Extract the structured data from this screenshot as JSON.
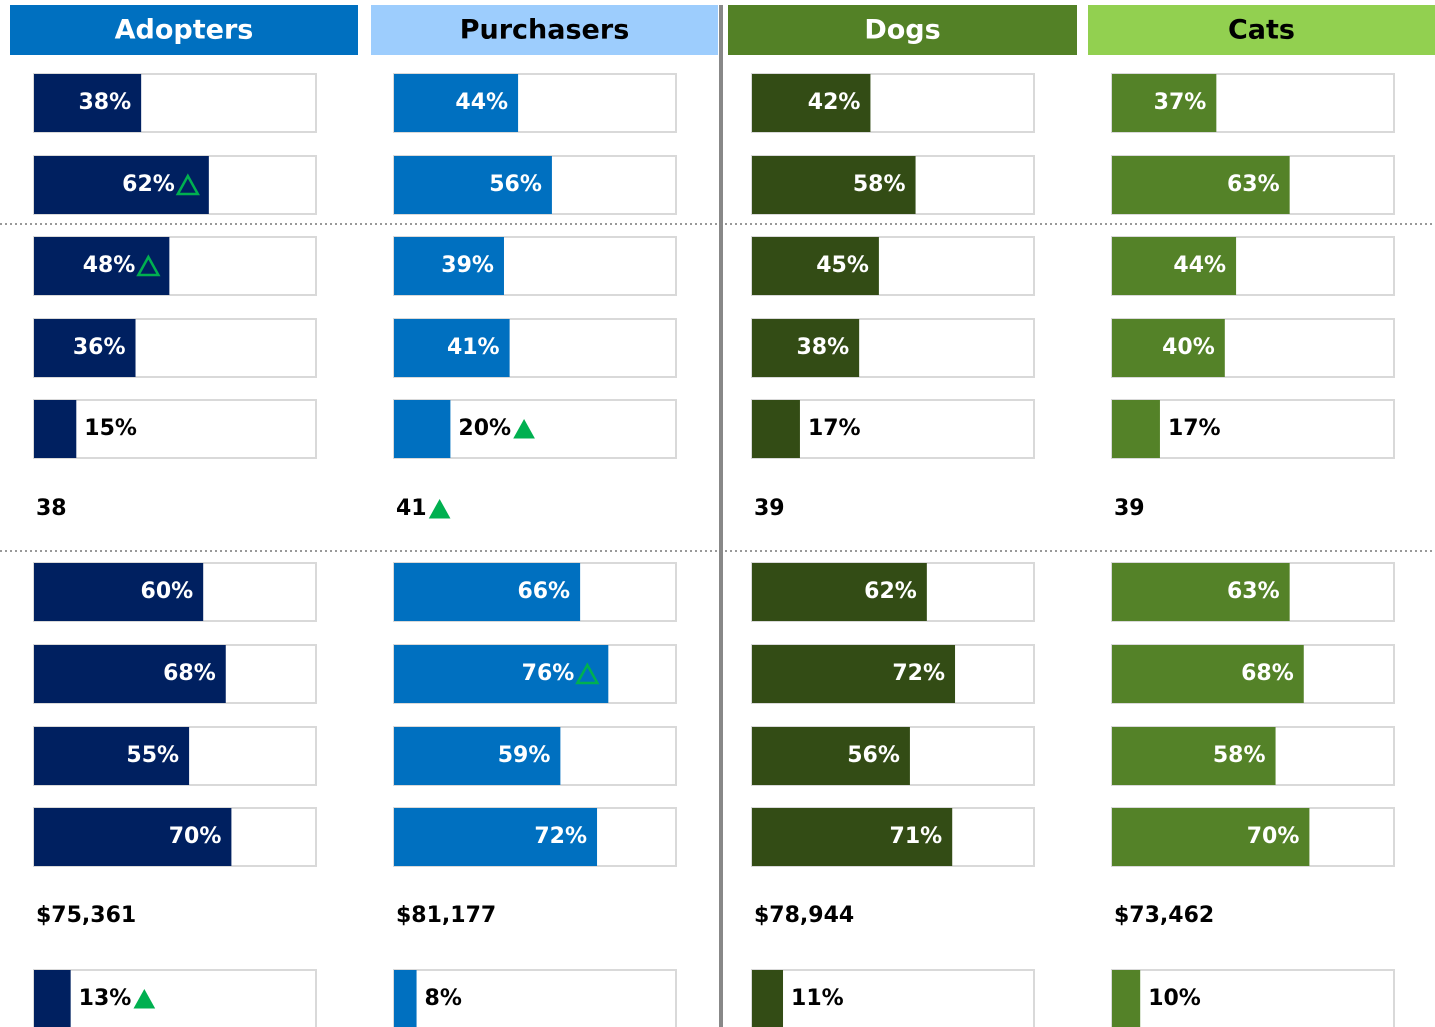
{
  "chart_data": [
    {
      "type": "bar",
      "title": "Adopters",
      "header_color": "#0070c0",
      "header_text_color": "#ffffff",
      "color": "#002060",
      "xlim": [
        0,
        100
      ],
      "values": [
        38,
        62,
        48,
        36,
        15,
        60,
        68,
        55,
        70,
        13
      ],
      "value_labels": [
        "38%",
        "62%",
        "48%",
        "36%",
        "15%",
        "60%",
        "68%",
        "55%",
        "70%",
        "13%"
      ],
      "markers": [
        null,
        "outline",
        "outline",
        null,
        null,
        null,
        null,
        null,
        null,
        "filled"
      ],
      "age": 38,
      "age_marker": null,
      "income": {
        "value": 75361,
        "label": "$75,361"
      }
    },
    {
      "type": "bar",
      "title": "Purchasers",
      "header_color": "#9dcdfd",
      "header_text_color": "#000000",
      "color": "#0070c0",
      "xlim": [
        0,
        100
      ],
      "values": [
        44,
        56,
        39,
        41,
        20,
        66,
        76,
        59,
        72,
        8
      ],
      "value_labels": [
        "44%",
        "56%",
        "39%",
        "41%",
        "20%",
        "66%",
        "76%",
        "59%",
        "72%",
        "8%"
      ],
      "markers": [
        null,
        null,
        null,
        null,
        "filled",
        null,
        "outline",
        null,
        null,
        null
      ],
      "age": 41,
      "age_marker": "filled",
      "income": {
        "value": 81177,
        "label": "$81,177"
      }
    },
    {
      "type": "bar",
      "title": "Dogs",
      "header_color": "#538126",
      "header_text_color": "#ffffff",
      "color": "#334c15",
      "xlim": [
        0,
        100
      ],
      "values": [
        42,
        58,
        45,
        38,
        17,
        62,
        72,
        56,
        71,
        11
      ],
      "value_labels": [
        "42%",
        "58%",
        "45%",
        "38%",
        "17%",
        "62%",
        "72%",
        "56%",
        "71%",
        "11%"
      ],
      "markers": [
        null,
        null,
        null,
        null,
        null,
        null,
        null,
        null,
        null,
        null
      ],
      "age": 39,
      "age_marker": null,
      "income": {
        "value": 78944,
        "label": "$78,944"
      }
    },
    {
      "type": "bar",
      "title": "Cats",
      "header_color": "#92d050",
      "header_text_color": "#000000",
      "color": "#548228",
      "xlim": [
        0,
        100
      ],
      "values": [
        37,
        63,
        44,
        40,
        17,
        63,
        68,
        58,
        70,
        10
      ],
      "value_labels": [
        "37%",
        "63%",
        "44%",
        "40%",
        "17%",
        "63%",
        "68%",
        "58%",
        "70%",
        "10%"
      ],
      "markers": [
        null,
        null,
        null,
        null,
        null,
        null,
        null,
        null,
        null,
        null
      ],
      "age": 39,
      "age_marker": null,
      "income": {
        "value": 73462,
        "label": "$73,462"
      }
    }
  ]
}
